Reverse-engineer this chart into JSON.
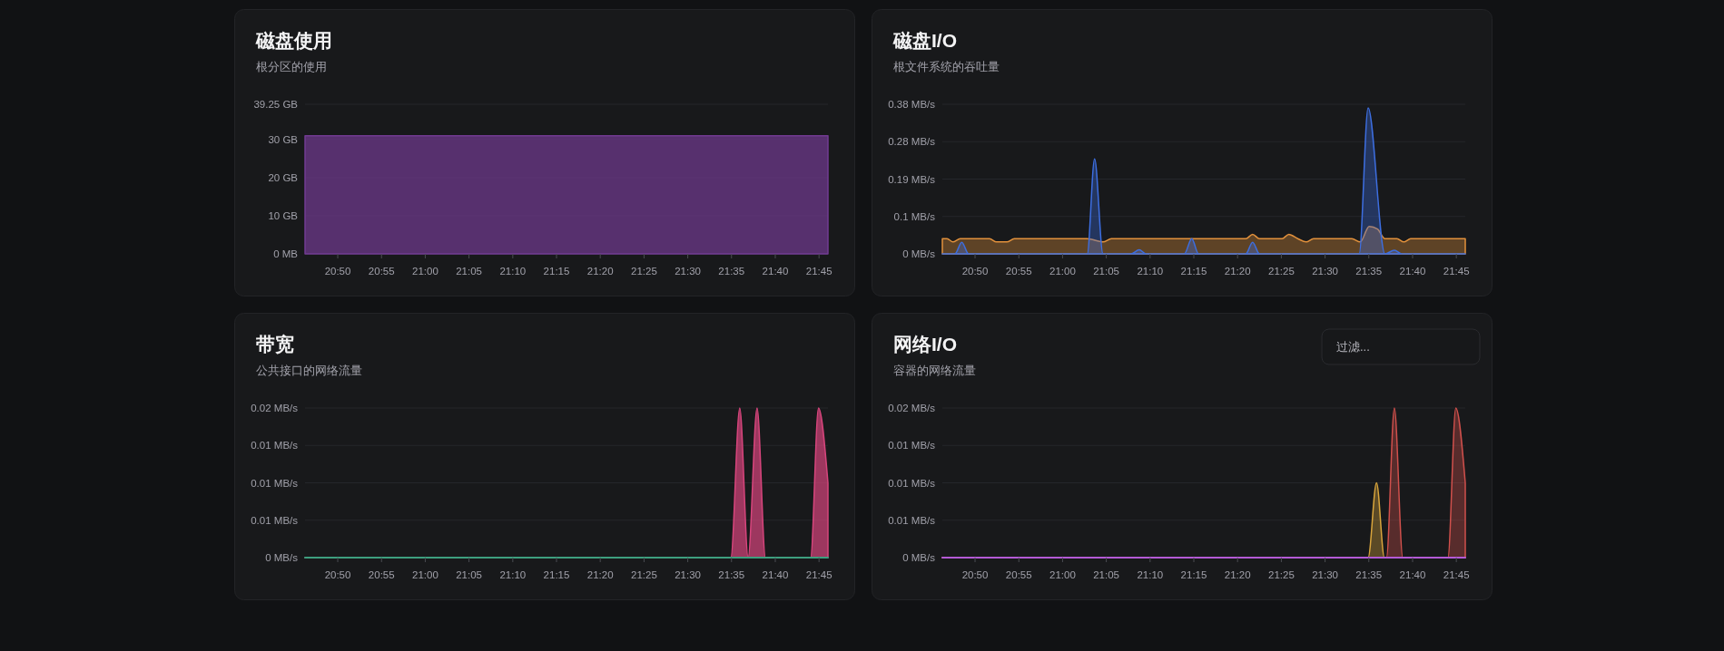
{
  "chart_data": [
    {
      "type": "area",
      "title": "磁盘使用",
      "subtitle": "根分区的使用",
      "x": [
        20.771,
        21.767
      ],
      "series": [
        {
          "color": "#723b92",
          "values": [
            31,
            31
          ]
        }
      ],
      "xlim": [
        20.771,
        21.767
      ],
      "xticks": [
        {
          "value": 20.8333,
          "label": "20:50"
        },
        {
          "value": 20.9167,
          "label": "20:55"
        },
        {
          "value": 21,
          "label": "21:00"
        },
        {
          "value": 21.0833,
          "label": "21:05"
        },
        {
          "value": 21.1667,
          "label": "21:10"
        },
        {
          "value": 21.25,
          "label": "21:15"
        },
        {
          "value": 21.3333,
          "label": "21:20"
        },
        {
          "value": 21.4167,
          "label": "21:25"
        },
        {
          "value": 21.5,
          "label": "21:30"
        },
        {
          "value": 21.5833,
          "label": "21:35"
        },
        {
          "value": 21.6667,
          "label": "21:40"
        },
        {
          "value": 21.75,
          "label": "21:45"
        }
      ],
      "ylim": [
        0,
        39.25
      ],
      "yticks": [
        {
          "value": 0,
          "label": "0 MB"
        },
        {
          "value": 10,
          "label": "10 GB"
        },
        {
          "value": 20,
          "label": "20 GB"
        },
        {
          "value": 30,
          "label": "30 GB"
        },
        {
          "value": 39.25,
          "label": "39.25 GB"
        }
      ],
      "grid": "y"
    },
    {
      "type": "area",
      "title": "磁盘I/O",
      "subtitle": "根文件系统的吞吐量",
      "series": [
        {
          "color": "#e2913c",
          "x": [
            20.771,
            20.78,
            20.791,
            20.805,
            20.861,
            20.874,
            20.894,
            20.908,
            21.047,
            21.077,
            21.093,
            21.349,
            21.362,
            21.375,
            21.418,
            21.431,
            21.448,
            21.464,
            21.478,
            21.551,
            21.567,
            21.584,
            21.6,
            21.614,
            21.637,
            21.65,
            21.663,
            21.767
          ],
          "values": [
            0.038,
            0.038,
            0.03,
            0.038,
            0.038,
            0.03,
            0.03,
            0.038,
            0.038,
            0.03,
            0.038,
            0.038,
            0.049,
            0.038,
            0.038,
            0.049,
            0.038,
            0.03,
            0.038,
            0.038,
            0.03,
            0.069,
            0.062,
            0.038,
            0.038,
            0.03,
            0.038,
            0.038
          ]
        },
        {
          "color": "#3d6ee0",
          "x": [
            20.771,
            20.795,
            20.808,
            20.821,
            21.047,
            21.061,
            21.077,
            21.13,
            21.146,
            21.159,
            21.232,
            21.246,
            21.259,
            21.349,
            21.362,
            21.375,
            21.565,
            21.582,
            21.614,
            21.632,
            21.647,
            21.767
          ],
          "values": [
            0,
            0,
            0.029,
            0,
            0,
            0.238,
            0,
            0,
            0.01,
            0,
            0,
            0.038,
            0,
            0,
            0.029,
            0,
            0,
            0.366,
            0,
            0.009,
            0,
            0
          ]
        }
      ],
      "xlim": [
        20.771,
        21.767
      ],
      "xticks": [
        {
          "value": 20.8333,
          "label": "20:50"
        },
        {
          "value": 20.9167,
          "label": "20:55"
        },
        {
          "value": 21,
          "label": "21:00"
        },
        {
          "value": 21.0833,
          "label": "21:05"
        },
        {
          "value": 21.1667,
          "label": "21:10"
        },
        {
          "value": 21.25,
          "label": "21:15"
        },
        {
          "value": 21.3333,
          "label": "21:20"
        },
        {
          "value": 21.4167,
          "label": "21:25"
        },
        {
          "value": 21.5,
          "label": "21:30"
        },
        {
          "value": 21.5833,
          "label": "21:35"
        },
        {
          "value": 21.6667,
          "label": "21:40"
        },
        {
          "value": 21.75,
          "label": "21:45"
        }
      ],
      "ylim": [
        0,
        0.375
      ],
      "yticks": [
        {
          "value": 0,
          "label": "0 MB/s"
        },
        {
          "value": 0.09375,
          "label": "0.1 MB/s"
        },
        {
          "value": 0.1875,
          "label": "0.19 MB/s"
        },
        {
          "value": 0.28125,
          "label": "0.28 MB/s"
        },
        {
          "value": 0.375,
          "label": "0.38 MB/s"
        }
      ],
      "grid": "y"
    },
    {
      "type": "area",
      "title": "带宽",
      "subtitle": "公共接口的网络流量",
      "series": [
        {
          "color": "#d6457c",
          "x": [
            20.771,
            21.582,
            21.599,
            21.615,
            21.632,
            21.648,
            21.734,
            21.749,
            21.767
          ],
          "values": [
            0,
            0,
            0.02,
            0,
            0.02,
            0,
            0,
            0.02,
            0.01
          ]
        },
        {
          "type": "line",
          "color": "#3d9f7f",
          "x": [
            20.771,
            21.767
          ],
          "values": [
            0,
            0
          ]
        }
      ],
      "xlim": [
        20.771,
        21.767
      ],
      "xticks": [
        {
          "value": 20.8333,
          "label": "20:50"
        },
        {
          "value": 20.9167,
          "label": "20:55"
        },
        {
          "value": 21,
          "label": "21:00"
        },
        {
          "value": 21.0833,
          "label": "21:05"
        },
        {
          "value": 21.1667,
          "label": "21:10"
        },
        {
          "value": 21.25,
          "label": "21:15"
        },
        {
          "value": 21.3333,
          "label": "21:20"
        },
        {
          "value": 21.4167,
          "label": "21:25"
        },
        {
          "value": 21.5,
          "label": "21:30"
        },
        {
          "value": 21.5833,
          "label": "21:35"
        },
        {
          "value": 21.6667,
          "label": "21:40"
        },
        {
          "value": 21.75,
          "label": "21:45"
        }
      ],
      "ylim": [
        0,
        0.02
      ],
      "yticks": [
        {
          "value": 0,
          "label": "0 MB/s"
        },
        {
          "value": 0.005,
          "label": "0.01 MB/s"
        },
        {
          "value": 0.01,
          "label": "0.01 MB/s"
        },
        {
          "value": 0.015,
          "label": "0.01 MB/s"
        },
        {
          "value": 0.02,
          "label": "0.02 MB/s"
        }
      ],
      "grid": "y"
    },
    {
      "type": "area",
      "title": "网络I/O",
      "subtitle": "容器的网络流量",
      "annotations": [
        "过滤..."
      ],
      "series": [
        {
          "color": "#d9a53c",
          "x": [
            20.771,
            21.582,
            21.598,
            21.613,
            21.767
          ],
          "values": [
            0,
            0,
            0.01,
            0,
            0
          ]
        },
        {
          "color": "#d0504c",
          "x": [
            20.771,
            21.617,
            21.632,
            21.648,
            21.734,
            21.749,
            21.767
          ],
          "values": [
            0,
            0,
            0.02,
            0,
            0,
            0.02,
            0.01
          ]
        },
        {
          "type": "line",
          "color": "#b45ad6",
          "x": [
            20.771,
            21.767
          ],
          "values": [
            0,
            0
          ]
        }
      ],
      "xlim": [
        20.771,
        21.767
      ],
      "xticks": [
        {
          "value": 20.8333,
          "label": "20:50"
        },
        {
          "value": 20.9167,
          "label": "20:55"
        },
        {
          "value": 21,
          "label": "21:00"
        },
        {
          "value": 21.0833,
          "label": "21:05"
        },
        {
          "value": 21.1667,
          "label": "21:10"
        },
        {
          "value": 21.25,
          "label": "21:15"
        },
        {
          "value": 21.3333,
          "label": "21:20"
        },
        {
          "value": 21.4167,
          "label": "21:25"
        },
        {
          "value": 21.5,
          "label": "21:30"
        },
        {
          "value": 21.5833,
          "label": "21:35"
        },
        {
          "value": 21.6667,
          "label": "21:40"
        },
        {
          "value": 21.75,
          "label": "21:45"
        }
      ],
      "ylim": [
        0,
        0.02
      ],
      "yticks": [
        {
          "value": 0,
          "label": "0 MB/s"
        },
        {
          "value": 0.005,
          "label": "0.01 MB/s"
        },
        {
          "value": 0.01,
          "label": "0.01 MB/s"
        },
        {
          "value": 0.015,
          "label": "0.01 MB/s"
        },
        {
          "value": 0.02,
          "label": "0.02 MB/s"
        }
      ],
      "grid": "y"
    }
  ]
}
